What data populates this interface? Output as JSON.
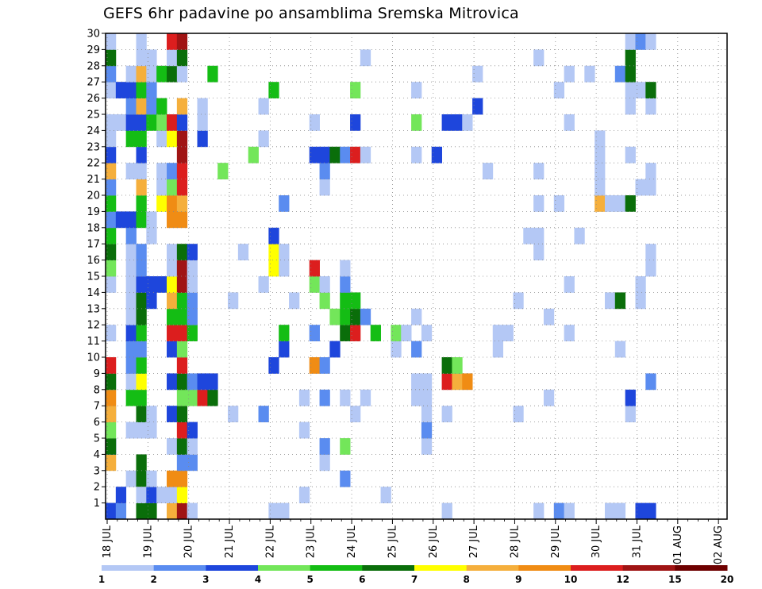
{
  "chart_data": {
    "type": "heatmap",
    "title": "GEFS 6hr padavine po ansamblima Sremska Mitrovica",
    "xlabel": "",
    "ylabel": "",
    "members": [
      1,
      2,
      3,
      4,
      5,
      6,
      7,
      8,
      9,
      10,
      11,
      12,
      13,
      14,
      15,
      16,
      17,
      18,
      19,
      20,
      21,
      22,
      23,
      24,
      25,
      26,
      27,
      28,
      29,
      30
    ],
    "x_tick_labels": [
      "18 JUL",
      "19 JUL",
      "20 JUL",
      "21 JUL",
      "22 JUL",
      "23 JUL",
      "24 JUL",
      "25 JUL",
      "26 JUL",
      "27 JUL",
      "28 JUL",
      "29 JUL",
      "30 JUL",
      "31 JUL",
      "01 AUG",
      "02 AUG"
    ],
    "steps_per_day": 4,
    "n_steps": 61,
    "grid": true,
    "legend_position": "bottom",
    "color_scale": {
      "thresholds": [
        1,
        2,
        3,
        4,
        5,
        6,
        7,
        8,
        9,
        10,
        12,
        15,
        20
      ],
      "colors": [
        "#b4c8f5",
        "#5a8cf0",
        "#1e46dc",
        "#73e65a",
        "#14bd14",
        "#0a6e0a",
        "#ffff00",
        "#f5af3c",
        "#f08c14",
        "#dc1e1e",
        "#a01414",
        "#6e0000"
      ]
    },
    "values": [
      [
        [
          1,
          1
        ],
        [
          1,
          2
        ],
        [
          1,
          3
        ],
        [
          4,
          8
        ],
        [
          5,
          3
        ],
        [
          5,
          6
        ],
        [
          6,
          4
        ],
        [
          7,
          2
        ],
        [
          7,
          8
        ],
        [
          8,
          9
        ],
        [
          9,
          1
        ],
        [
          9,
          6
        ],
        [
          10,
          11
        ],
        [
          12,
          1
        ],
        [
          15,
          1
        ],
        [
          16,
          4
        ],
        [
          17,
          6
        ],
        [
          18,
          5
        ],
        [
          19,
          2
        ],
        [
          20,
          5
        ],
        [
          21,
          2
        ],
        [
          22,
          8
        ],
        [
          23,
          3
        ],
        [
          24,
          1
        ],
        [
          25,
          1
        ],
        [
          27,
          1
        ],
        [
          28,
          2
        ],
        [
          29,
          6
        ],
        [
          30,
          1
        ]
      ],
      [
        [
          1,
          2
        ],
        [
          2,
          3
        ],
        [
          19,
          3
        ],
        [
          25,
          1
        ],
        [
          27,
          3
        ]
      ],
      [
        [
          3,
          1
        ],
        [
          6,
          1
        ],
        [
          8,
          5
        ],
        [
          9,
          1
        ],
        [
          10,
          2
        ],
        [
          11,
          2
        ],
        [
          12,
          3
        ],
        [
          13,
          1
        ],
        [
          14,
          1
        ],
        [
          15,
          1
        ],
        [
          16,
          1
        ],
        [
          17,
          1
        ],
        [
          18,
          2
        ],
        [
          19,
          3
        ],
        [
          22,
          1
        ],
        [
          24,
          5
        ],
        [
          25,
          3
        ],
        [
          26,
          2
        ],
        [
          27,
          3
        ],
        [
          28,
          1
        ]
      ],
      [
        [
          2,
          3
        ],
        [
          3,
          8
        ],
        [
          3,
          6
        ],
        [
          1,
          6
        ],
        [
          2,
          1
        ],
        [
          4,
          6
        ],
        [
          6,
          1
        ],
        [
          7,
          6
        ],
        [
          8,
          5
        ],
        [
          9,
          7
        ],
        [
          10,
          5
        ],
        [
          11,
          2
        ],
        [
          12,
          5
        ],
        [
          13,
          6
        ],
        [
          14,
          6
        ],
        [
          15,
          3
        ],
        [
          16,
          2
        ],
        [
          17,
          2
        ],
        [
          19,
          5
        ],
        [
          20,
          5
        ],
        [
          21,
          8
        ],
        [
          22,
          1
        ],
        [
          23,
          3
        ],
        [
          24,
          5
        ],
        [
          25,
          3
        ],
        [
          26,
          8
        ],
        [
          27,
          5
        ],
        [
          28,
          8
        ],
        [
          29,
          1
        ],
        [
          30,
          1
        ]
      ],
      [
        [
          1,
          6
        ],
        [
          2,
          3
        ],
        [
          3,
          1
        ],
        [
          6,
          1
        ],
        [
          7,
          1
        ],
        [
          14,
          3
        ],
        [
          15,
          3
        ],
        [
          18,
          1
        ],
        [
          19,
          1
        ],
        [
          25,
          5
        ],
        [
          26,
          2
        ],
        [
          27,
          2
        ],
        [
          28,
          1
        ],
        [
          29,
          1
        ]
      ],
      [
        [
          2,
          1
        ],
        [
          15,
          3
        ],
        [
          20,
          7
        ],
        [
          21,
          1
        ],
        [
          22,
          1
        ],
        [
          24,
          1
        ],
        [
          25,
          4
        ],
        [
          26,
          5
        ],
        [
          28,
          5
        ]
      ],
      [
        [
          1,
          8
        ],
        [
          2,
          1
        ],
        [
          3,
          9
        ],
        [
          5,
          1
        ],
        [
          7,
          3
        ],
        [
          9,
          3
        ],
        [
          11,
          3
        ],
        [
          12,
          11
        ],
        [
          13,
          5
        ],
        [
          14,
          8
        ],
        [
          15,
          7
        ],
        [
          16,
          1
        ],
        [
          17,
          1
        ],
        [
          19,
          9
        ],
        [
          20,
          9
        ],
        [
          21,
          4
        ],
        [
          22,
          2
        ],
        [
          24,
          7
        ],
        [
          25,
          11
        ],
        [
          28,
          6
        ],
        [
          29,
          1
        ],
        [
          30,
          11
        ]
      ],
      [
        [
          1,
          12
        ],
        [
          2,
          7
        ],
        [
          3,
          9
        ],
        [
          4,
          2
        ],
        [
          5,
          6
        ],
        [
          6,
          11
        ],
        [
          7,
          6
        ],
        [
          8,
          4
        ],
        [
          9,
          6
        ],
        [
          10,
          11
        ],
        [
          11,
          4
        ],
        [
          12,
          10
        ],
        [
          13,
          5
        ],
        [
          14,
          5
        ],
        [
          15,
          12
        ],
        [
          16,
          12
        ],
        [
          17,
          6
        ],
        [
          19,
          9
        ],
        [
          20,
          8
        ],
        [
          21,
          10
        ],
        [
          22,
          10
        ],
        [
          23,
          12
        ],
        [
          24,
          12
        ],
        [
          25,
          3
        ],
        [
          26,
          8
        ],
        [
          28,
          1
        ],
        [
          29,
          6
        ],
        [
          30,
          12
        ]
      ],
      [
        [
          1,
          1
        ],
        [
          4,
          2
        ],
        [
          5,
          1
        ],
        [
          6,
          3
        ],
        [
          8,
          4
        ],
        [
          9,
          2
        ],
        [
          12,
          5
        ],
        [
          13,
          2
        ],
        [
          14,
          2
        ],
        [
          15,
          1
        ],
        [
          16,
          1
        ],
        [
          17,
          3
        ]
      ],
      [
        [
          8,
          10
        ],
        [
          9,
          3
        ],
        [
          24,
          3
        ],
        [
          25,
          1
        ],
        [
          26,
          1
        ]
      ],
      [
        [
          8,
          6
        ],
        [
          9,
          3
        ],
        [
          28,
          5
        ]
      ],
      [
        [
          22,
          4
        ]
      ],
      [
        [
          7,
          1
        ],
        [
          14,
          1
        ]
      ],
      [
        [
          17,
          1
        ]
      ],
      [
        [
          23,
          4
        ]
      ],
      [
        [
          7,
          2
        ],
        [
          15,
          1
        ],
        [
          24,
          1
        ],
        [
          26,
          1
        ]
      ],
      [
        [
          1,
          1
        ],
        [
          10,
          3
        ],
        [
          16,
          7
        ],
        [
          17,
          7
        ],
        [
          18,
          3
        ],
        [
          27,
          5
        ]
      ],
      [
        [
          1,
          1
        ],
        [
          11,
          3
        ],
        [
          12,
          5
        ],
        [
          16,
          1
        ],
        [
          17,
          1
        ],
        [
          20,
          2
        ]
      ],
      [
        [
          14,
          1
        ]
      ],
      [
        [
          2,
          1
        ],
        [
          6,
          1
        ],
        [
          8,
          1
        ]
      ],
      [
        [
          10,
          9
        ],
        [
          12,
          2
        ],
        [
          15,
          4
        ],
        [
          16,
          10
        ],
        [
          23,
          3
        ],
        [
          25,
          1
        ]
      ],
      [
        [
          4,
          1
        ],
        [
          5,
          2
        ],
        [
          8,
          2
        ],
        [
          10,
          2
        ],
        [
          14,
          4
        ],
        [
          15,
          1
        ],
        [
          21,
          1
        ],
        [
          22,
          2
        ],
        [
          23,
          3
        ]
      ],
      [
        [
          11,
          3
        ],
        [
          13,
          4
        ],
        [
          23,
          6
        ]
      ],
      [
        [
          3,
          2
        ],
        [
          5,
          4
        ],
        [
          8,
          1
        ],
        [
          12,
          6
        ],
        [
          13,
          5
        ],
        [
          14,
          5
        ],
        [
          15,
          2
        ],
        [
          16,
          1
        ],
        [
          23,
          2
        ]
      ],
      [
        [
          7,
          1
        ],
        [
          12,
          10
        ],
        [
          13,
          6
        ],
        [
          14,
          5
        ],
        [
          23,
          10
        ],
        [
          25,
          3
        ],
        [
          27,
          4
        ]
      ],
      [
        [
          8,
          1
        ],
        [
          13,
          2
        ],
        [
          23,
          1
        ],
        [
          29,
          1
        ]
      ],
      [
        [
          12,
          5
        ]
      ],
      [
        [
          2,
          1
        ]
      ],
      [
        [
          11,
          1
        ],
        [
          12,
          4
        ]
      ],
      [
        [
          12,
          1
        ]
      ],
      [
        [
          8,
          1
        ],
        [
          9,
          1
        ],
        [
          11,
          2
        ],
        [
          13,
          1
        ],
        [
          23,
          1
        ],
        [
          25,
          4
        ],
        [
          27,
          1
        ]
      ],
      [
        [
          5,
          1
        ],
        [
          6,
          2
        ],
        [
          7,
          1
        ],
        [
          8,
          1
        ],
        [
          9,
          1
        ],
        [
          12,
          1
        ]
      ],
      [
        [
          23,
          3
        ]
      ],
      [
        [
          1,
          1
        ],
        [
          7,
          1
        ],
        [
          9,
          10
        ],
        [
          10,
          6
        ],
        [
          25,
          3
        ]
      ],
      [
        [
          9,
          8
        ],
        [
          10,
          4
        ],
        [
          25,
          3
        ]
      ],
      [
        [
          9,
          9
        ],
        [
          25,
          1
        ]
      ],
      [
        [
          26,
          3
        ],
        [
          28,
          1
        ]
      ],
      [
        [
          22,
          1
        ]
      ],
      [
        [
          11,
          1
        ],
        [
          12,
          1
        ]
      ],
      [
        [
          12,
          1
        ]
      ],
      [
        [
          7,
          1
        ],
        [
          14,
          1
        ]
      ],
      [
        [
          18,
          1
        ]
      ],
      [
        [
          1,
          1
        ],
        [
          17,
          1
        ],
        [
          18,
          1
        ],
        [
          20,
          1
        ],
        [
          22,
          1
        ],
        [
          29,
          1
        ]
      ],
      [
        [
          8,
          1
        ],
        [
          13,
          1
        ]
      ],
      [
        [
          1,
          2
        ],
        [
          20,
          1
        ],
        [
          27,
          1
        ]
      ],
      [
        [
          1,
          1
        ],
        [
          12,
          1
        ],
        [
          15,
          1
        ],
        [
          25,
          1
        ],
        [
          28,
          1
        ]
      ],
      [
        [
          18,
          1
        ]
      ],
      [
        [
          28,
          1
        ]
      ],
      [
        [
          20,
          8
        ],
        [
          21,
          1
        ],
        [
          22,
          1
        ],
        [
          23,
          1
        ],
        [
          24,
          1
        ]
      ],
      [
        [
          1,
          1
        ],
        [
          14,
          1
        ],
        [
          20,
          1
        ]
      ],
      [
        [
          1,
          1
        ],
        [
          11,
          1
        ],
        [
          14,
          6
        ],
        [
          20,
          1
        ],
        [
          28,
          2
        ]
      ],
      [
        [
          20,
          6
        ],
        [
          23,
          1
        ],
        [
          29,
          6
        ],
        [
          30,
          1
        ],
        [
          26,
          1
        ],
        [
          27,
          1
        ],
        [
          28,
          6
        ],
        [
          7,
          1
        ],
        [
          8,
          3
        ]
      ],
      [
        [
          1,
          3
        ],
        [
          14,
          1
        ],
        [
          15,
          1
        ],
        [
          21,
          1
        ],
        [
          30,
          2
        ],
        [
          27,
          1
        ]
      ],
      [
        [
          1,
          3
        ],
        [
          9,
          2
        ],
        [
          16,
          1
        ],
        [
          17,
          1
        ],
        [
          21,
          1
        ],
        [
          22,
          1
        ],
        [
          26,
          1
        ],
        [
          27,
          6
        ],
        [
          30,
          1
        ]
      ]
    ]
  }
}
